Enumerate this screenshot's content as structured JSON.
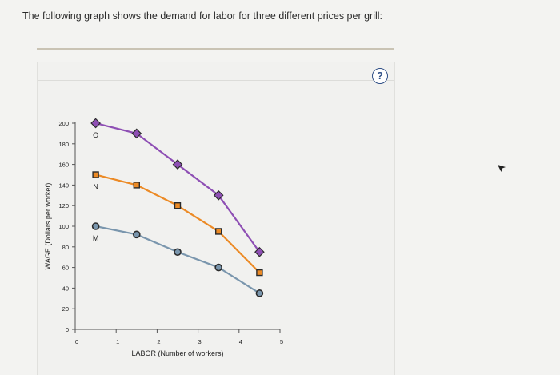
{
  "question_text": "The following graph shows the demand for labor for three different prices per grill:",
  "help_label": "?",
  "chart_data": {
    "type": "line",
    "xlabel": "LABOR (Number of workers)",
    "ylabel": "WAGE (Dollars per worker)",
    "xlim": [
      0,
      5
    ],
    "ylim": [
      0,
      200
    ],
    "x_ticks": [
      0,
      1,
      2,
      3,
      4,
      5
    ],
    "y_ticks": [
      0,
      20,
      40,
      60,
      80,
      100,
      120,
      140,
      160,
      180,
      200
    ],
    "x": [
      0.5,
      1.5,
      2.5,
      3.5,
      4.5
    ],
    "series": [
      {
        "name": "O",
        "color": "#8e4fb4",
        "marker": "diamond",
        "values": [
          200,
          190,
          160,
          130,
          75
        ]
      },
      {
        "name": "N",
        "color": "#ec8a25",
        "marker": "square",
        "values": [
          150,
          140,
          120,
          95,
          55
        ]
      },
      {
        "name": "M",
        "color": "#7a96ad",
        "marker": "circle",
        "values": [
          100,
          92,
          75,
          60,
          35
        ]
      }
    ]
  }
}
